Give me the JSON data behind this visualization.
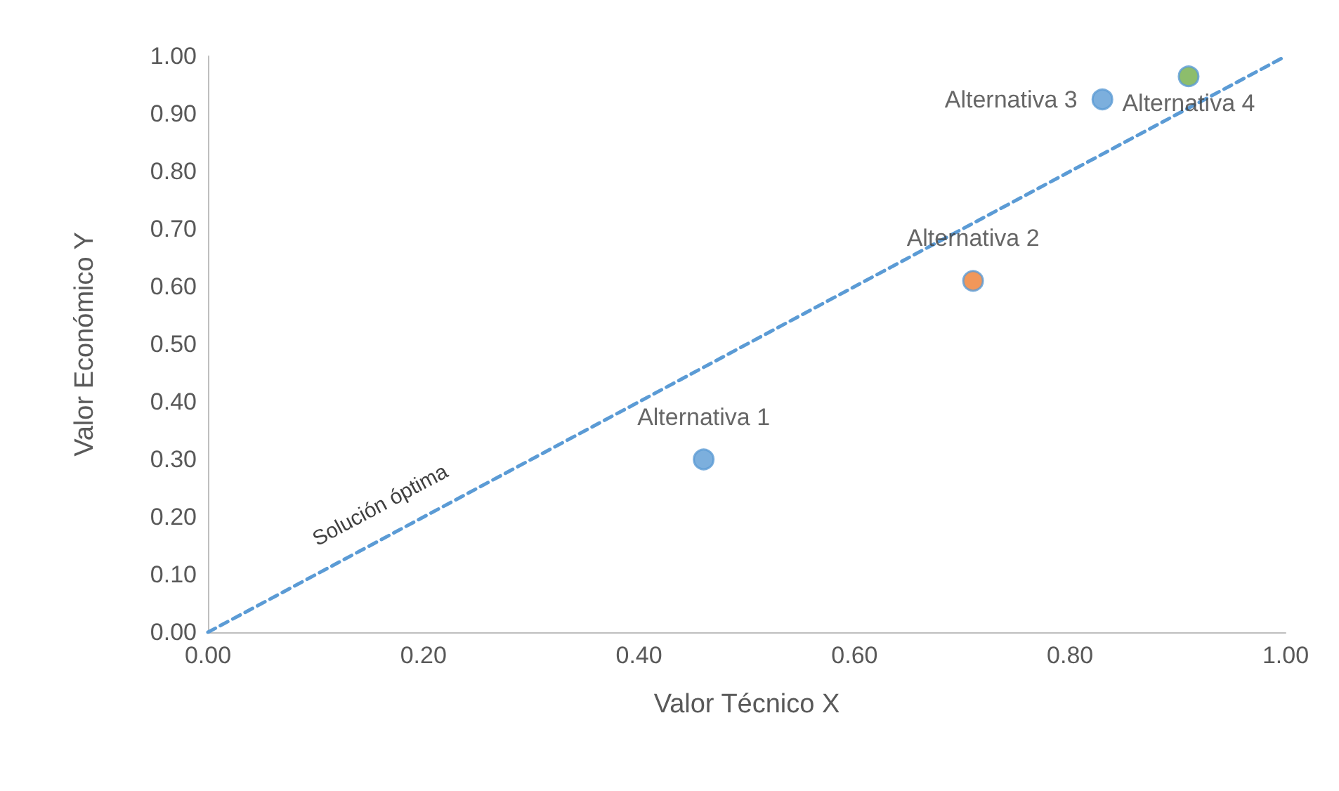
{
  "chart_data": {
    "type": "scatter",
    "xlabel": "Valor Técnico X",
    "ylabel": "Valor Económico Y",
    "xlim": [
      0,
      1
    ],
    "xticks": [
      {
        "value": 0,
        "label": "0.00"
      },
      {
        "value": 0.2,
        "label": "0.20"
      },
      {
        "value": 0.4,
        "label": "0.40"
      },
      {
        "value": 0.6,
        "label": "0.60"
      },
      {
        "value": 0.8,
        "label": "0.80"
      },
      {
        "value": 1,
        "label": "1.00"
      }
    ],
    "ylim": [
      0,
      1
    ],
    "yticks": [
      {
        "value": 0,
        "label": "0.00"
      },
      {
        "value": 0.1,
        "label": "0.10"
      },
      {
        "value": 0.2,
        "label": "0.20"
      },
      {
        "value": 0.3,
        "label": "0.30"
      },
      {
        "value": 0.4,
        "label": "0.40"
      },
      {
        "value": 0.5,
        "label": "0.50"
      },
      {
        "value": 0.6,
        "label": "0.60"
      },
      {
        "value": 0.7,
        "label": "0.70"
      },
      {
        "value": 0.8,
        "label": "0.80"
      },
      {
        "value": 0.9,
        "label": "0.90"
      },
      {
        "value": 1,
        "label": "1.00"
      }
    ],
    "grid": false,
    "legend": false,
    "marker": "circle",
    "series": [
      {
        "type": "line",
        "color": "#5b9bd5",
        "x": [
          0,
          1
        ],
        "values": [
          0,
          1
        ],
        "line_style": "dashed",
        "marker": "none"
      },
      {
        "name": "Alternativa 1",
        "color": "#5b9bd5",
        "x": [
          0.46
        ],
        "values": [
          0.3
        ]
      },
      {
        "name": "Alternativa 2",
        "color": "#ed7d31",
        "x": [
          0.71
        ],
        "values": [
          0.61
        ]
      },
      {
        "name": "Alternativa 3",
        "color": "#5b9bd5",
        "x": [
          0.83
        ],
        "values": [
          0.925
        ]
      },
      {
        "name": "Alternativa 4",
        "color": "#70ad47",
        "x": [
          0.91
        ],
        "values": [
          0.965
        ]
      }
    ],
    "annotations": [
      "Solución óptima"
    ]
  }
}
